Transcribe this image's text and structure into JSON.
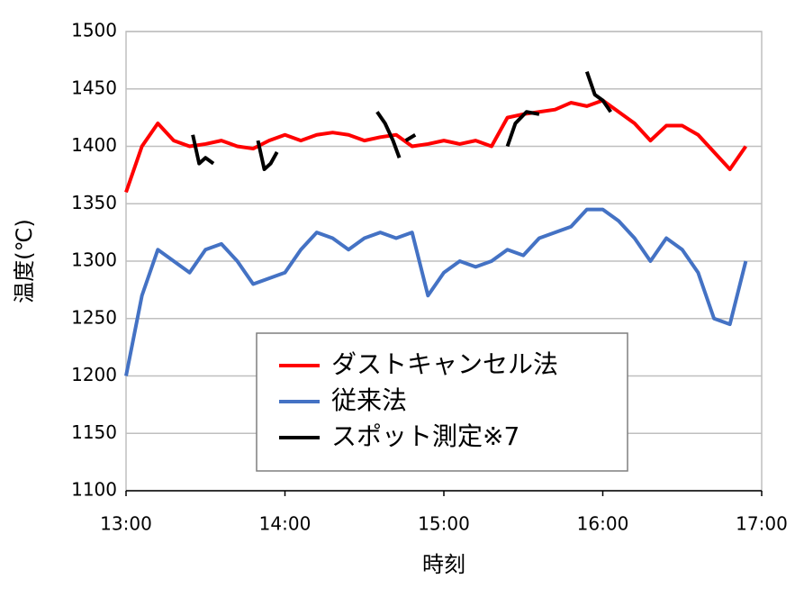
{
  "chart_data": {
    "type": "line",
    "x_label": "時刻",
    "y_label": "温度(℃)",
    "x": [
      13.0,
      13.1,
      13.2,
      13.3,
      13.4,
      13.5,
      13.6,
      13.7,
      13.8,
      13.9,
      14.0,
      14.1,
      14.2,
      14.3,
      14.4,
      14.5,
      14.6,
      14.7,
      14.8,
      14.9,
      15.0,
      15.1,
      15.2,
      15.3,
      15.4,
      15.5,
      15.6,
      15.7,
      15.8,
      15.9,
      16.0,
      16.1,
      16.2,
      16.3,
      16.4,
      16.5,
      16.6,
      16.7,
      16.8,
      16.9
    ],
    "series": [
      {
        "name": "ダストキャンセル法",
        "color": "#ff0000",
        "values": [
          1360,
          1400,
          1420,
          1405,
          1400,
          1402,
          1405,
          1400,
          1398,
          1405,
          1410,
          1405,
          1410,
          1412,
          1410,
          1405,
          1408,
          1410,
          1400,
          1402,
          1405,
          1402,
          1405,
          1400,
          1425,
          1428,
          1430,
          1432,
          1438,
          1435,
          1440,
          1430,
          1420,
          1405,
          1418,
          1418,
          1410,
          1395,
          1380,
          1400
        ]
      },
      {
        "name": "従来法",
        "color": "#4472c4",
        "values": [
          1200,
          1270,
          1310,
          1300,
          1290,
          1310,
          1315,
          1300,
          1280,
          1285,
          1290,
          1310,
          1325,
          1320,
          1310,
          1320,
          1325,
          1320,
          1325,
          1270,
          1290,
          1300,
          1295,
          1300,
          1310,
          1305,
          1320,
          1325,
          1330,
          1345,
          1345,
          1335,
          1320,
          1300,
          1320,
          1310,
          1290,
          1250,
          1245,
          1300
        ]
      },
      {
        "name": "スポット測定※7",
        "color": "#000000",
        "x": [
          13.42,
          13.46,
          13.5,
          13.55,
          13.6,
          13.83,
          13.87,
          13.91,
          13.95,
          14.2,
          14.58,
          14.63,
          14.68,
          14.72,
          14.74,
          14.76,
          14.82,
          15.0,
          15.4,
          15.45,
          15.52,
          15.6,
          15.7,
          15.9,
          15.95,
          16.0,
          16.05
        ],
        "values": [
          1410,
          1385,
          1390,
          1385,
          null,
          1405,
          1380,
          1385,
          1395,
          null,
          1430,
          1420,
          1405,
          1390,
          null,
          1405,
          1410,
          null,
          1400,
          1420,
          1430,
          1428,
          null,
          1465,
          1445,
          1440,
          1430
        ]
      }
    ],
    "xlim": [
      13,
      17
    ],
    "xticks": [
      {
        "value": 13,
        "label": "13:00"
      },
      {
        "value": 14,
        "label": "14:00"
      },
      {
        "value": 15,
        "label": "15:00"
      },
      {
        "value": 16,
        "label": "16:00"
      },
      {
        "value": 17,
        "label": "17:00"
      }
    ],
    "ylim": [
      1100,
      1500
    ],
    "yticks": [
      1100,
      1150,
      1200,
      1250,
      1300,
      1350,
      1400,
      1450,
      1500
    ],
    "grid": true
  }
}
